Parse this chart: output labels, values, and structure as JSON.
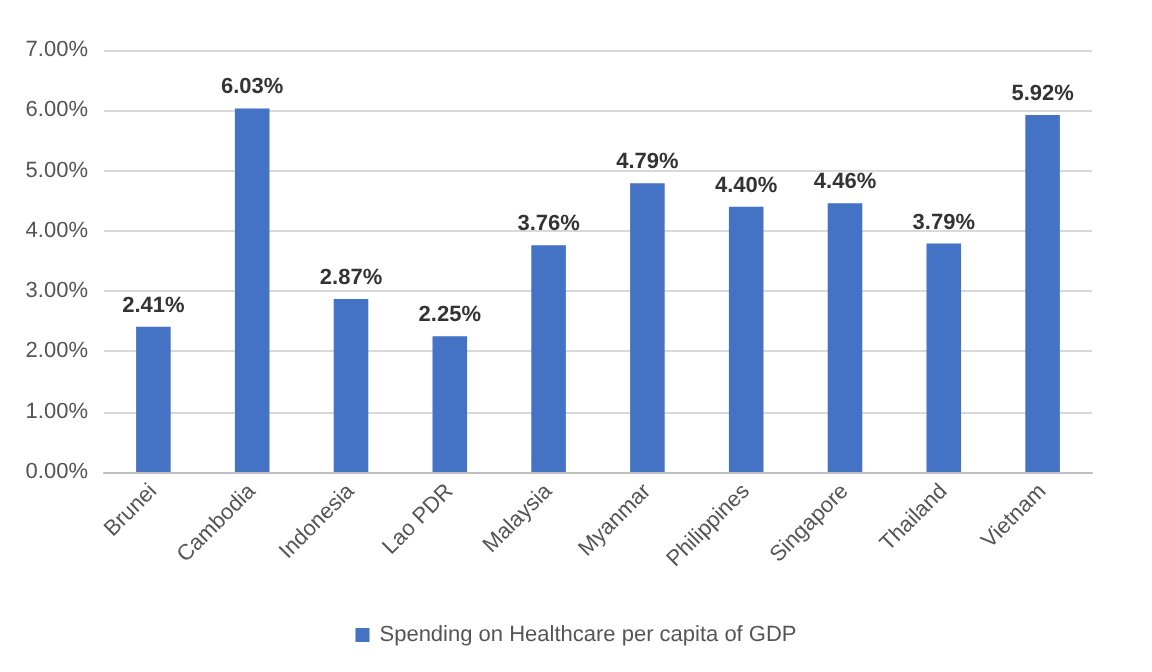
{
  "chart_data": {
    "type": "bar",
    "categories": [
      "Brunei",
      "Cambodia",
      "Indonesia",
      "Lao PDR",
      "Malaysia",
      "Myanmar",
      "Philippines",
      "Singapore",
      "Thailand",
      "Vietnam"
    ],
    "series": [
      {
        "name": "Spending on Healthcare per capita of GDP",
        "color": "#4472c4",
        "values": [
          2.41,
          6.03,
          2.87,
          2.25,
          3.76,
          4.79,
          4.4,
          4.46,
          3.79,
          5.92
        ],
        "value_labels": [
          "2.41%",
          "6.03%",
          "2.87%",
          "2.25%",
          "3.76%",
          "4.79%",
          "4.40%",
          "4.46%",
          "3.79%",
          "5.92%"
        ]
      }
    ],
    "ylim": [
      0,
      7
    ],
    "yticks": [
      {
        "value": 0,
        "label": "0.00%"
      },
      {
        "value": 1,
        "label": "1.00%"
      },
      {
        "value": 2,
        "label": "2.00%"
      },
      {
        "value": 3,
        "label": "3.00%"
      },
      {
        "value": 4,
        "label": "4.00%"
      },
      {
        "value": 5,
        "label": "5.00%"
      },
      {
        "value": 6,
        "label": "6.00%"
      },
      {
        "value": 7,
        "label": "7.00%"
      }
    ],
    "grid": "y",
    "legend": "bottom"
  }
}
